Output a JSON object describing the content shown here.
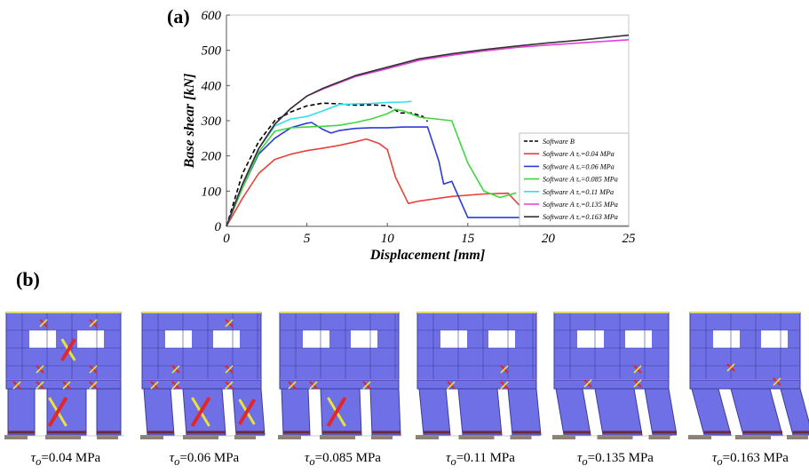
{
  "panel_a_label": "(a)",
  "panel_b_label": "(b)",
  "chart_data": {
    "type": "line",
    "xlabel": "Displacement [mm]",
    "ylabel": "Base shear [kN]",
    "xlim": [
      0,
      25
    ],
    "ylim": [
      0,
      600
    ],
    "xticks": [
      0,
      5,
      10,
      15,
      20,
      25
    ],
    "yticks": [
      0,
      100,
      200,
      300,
      400,
      500,
      600
    ],
    "grid": false,
    "legend_position": "bottom-right",
    "series": [
      {
        "name": "Software B",
        "color": "#000000",
        "dash": true,
        "x": [
          0,
          1,
          2,
          3,
          4,
          5,
          6,
          7,
          8,
          9,
          10,
          10.8,
          11.5,
          12.2,
          12.5
        ],
        "y": [
          0,
          150,
          240,
          300,
          325,
          342,
          350,
          348,
          344,
          345,
          343,
          322,
          322,
          312,
          298
        ]
      },
      {
        "name": "Software A τₒ=0.04 MPa",
        "color": "#e8413a",
        "x": [
          0,
          1,
          2,
          3,
          4,
          5,
          6,
          7,
          8,
          8.7,
          9.5,
          10,
          10.5,
          11.3,
          12,
          14,
          16,
          17.5,
          18.2
        ],
        "y": [
          0,
          80,
          150,
          190,
          205,
          215,
          222,
          230,
          240,
          248,
          235,
          218,
          140,
          65,
          72,
          85,
          92,
          94,
          60
        ]
      },
      {
        "name": "Software A τₒ=0.06 MPa",
        "color": "#2b3bd6",
        "x": [
          0,
          1,
          2,
          3,
          4,
          5,
          5.3,
          6,
          6.5,
          7,
          8,
          9,
          10,
          11,
          12.5,
          13.2,
          13.5,
          14,
          15,
          17,
          20,
          25
        ],
        "y": [
          0,
          110,
          205,
          250,
          280,
          293,
          295,
          275,
          265,
          272,
          278,
          280,
          280,
          282,
          282,
          185,
          120,
          128,
          25,
          25,
          25,
          25
        ]
      },
      {
        "name": "Software A τₒ=0.085 MPa",
        "color": "#3dd83d",
        "x": [
          0,
          1,
          2,
          3,
          4,
          5,
          6,
          7,
          8,
          9,
          10,
          10.5,
          11,
          12,
          13,
          14,
          15,
          16,
          17,
          18
        ],
        "y": [
          0,
          110,
          210,
          270,
          280,
          282,
          284,
          287,
          295,
          305,
          320,
          332,
          328,
          310,
          305,
          300,
          180,
          100,
          82,
          95
        ]
      },
      {
        "name": "Software A τₒ=0.11 MPa",
        "color": "#31e0e8",
        "x": [
          0,
          1,
          2,
          3,
          4,
          5,
          6,
          7,
          8,
          9,
          10,
          11,
          11.5
        ],
        "y": [
          0,
          120,
          220,
          285,
          305,
          312,
          328,
          346,
          348,
          349,
          352,
          353,
          355
        ]
      },
      {
        "name": "Software A τₒ=0.135 MPa",
        "color": "#e33fd9",
        "x": [
          0,
          1,
          2,
          3,
          4,
          5,
          6,
          8,
          10,
          12,
          14,
          16,
          18,
          20,
          22,
          25
        ],
        "y": [
          0,
          120,
          220,
          290,
          335,
          370,
          390,
          425,
          448,
          472,
          486,
          498,
          508,
          515,
          521,
          530
        ]
      },
      {
        "name": "Software A τₒ=0.163 MPa",
        "color": "#333333",
        "x": [
          0,
          1,
          2,
          3,
          4,
          5,
          6,
          8,
          10,
          12,
          14,
          16,
          18,
          20,
          22,
          25
        ],
        "y": [
          0,
          120,
          220,
          290,
          335,
          370,
          392,
          428,
          452,
          476,
          490,
          502,
          512,
          521,
          529,
          543
        ]
      }
    ]
  },
  "walls": [
    {
      "tau_symbol": "τ",
      "tau_sub": "o",
      "value": "=0.04 MPa"
    },
    {
      "tau_symbol": "τ",
      "tau_sub": "o",
      "value": "=0.06 MPa"
    },
    {
      "tau_symbol": "τ",
      "tau_sub": "o",
      "value": "=0.085 MPa"
    },
    {
      "tau_symbol": "τ",
      "tau_sub": "o",
      "value": "=0.11 MPa"
    },
    {
      "tau_symbol": "τ",
      "tau_sub": "o",
      "value": "=0.135 MPa"
    },
    {
      "tau_symbol": "τ",
      "tau_sub": "o",
      "value": "=0.163 MPa"
    }
  ],
  "colors": {
    "wall_fill": "#6f70e6",
    "wall_edge": "#3c3d9a",
    "crack_red": "#e3262a",
    "crack_yellow": "#e8e23a",
    "spandrel_line": "#e0d56a",
    "base": "#8b8175"
  }
}
